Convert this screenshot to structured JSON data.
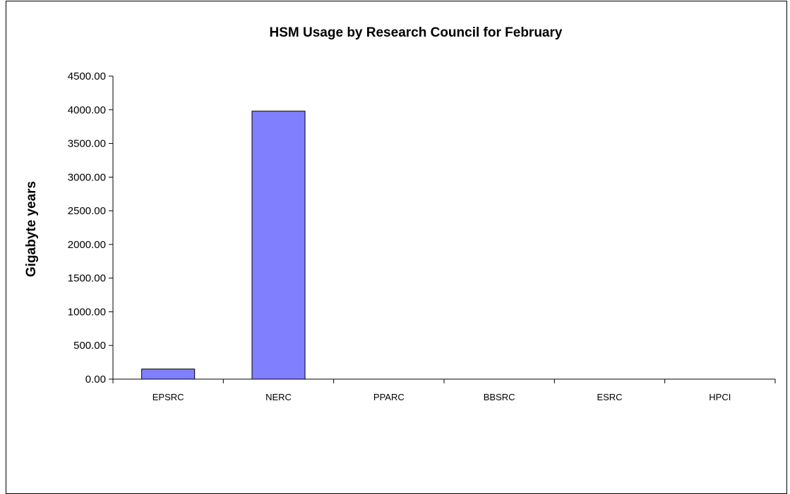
{
  "chart_data": {
    "type": "bar",
    "title": "HSM Usage by Research Council for February",
    "xlabel": "",
    "ylabel": "Gigabyte years",
    "categories": [
      "EPSRC",
      "NERC",
      "PPARC",
      "BBSRC",
      "ESRC",
      "HPCI"
    ],
    "values": [
      150,
      3980,
      0,
      0,
      0,
      0
    ],
    "ylim": [
      0,
      4500
    ],
    "yticks": [
      "0.00",
      "500.00",
      "1000.00",
      "1500.00",
      "2000.00",
      "2500.00",
      "3000.00",
      "3500.00",
      "4000.00",
      "4500.00"
    ],
    "bar_color": "#8080ff",
    "grid": false,
    "legend": "none"
  }
}
